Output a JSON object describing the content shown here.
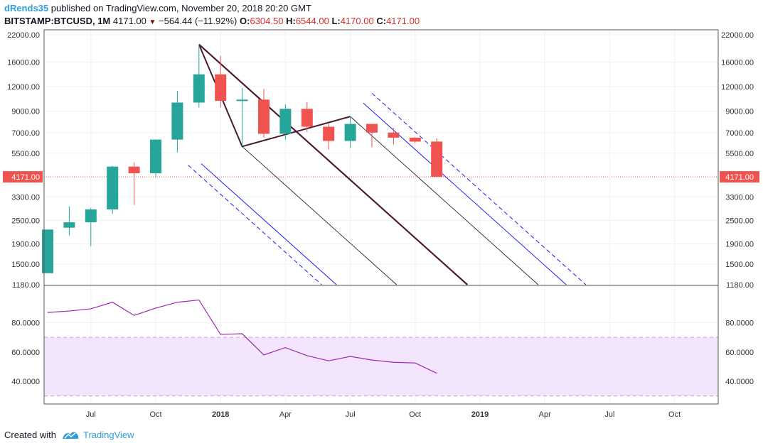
{
  "header": {
    "author": "dRends35",
    "published": " published on TradingView.com, November 20, 2018 20:20 GMT",
    "symbol": "BITSTAMP:BTCUSD, 1M",
    "last": "4171.00",
    "change": "−564.44 (−11.92%)",
    "o_label": "O:",
    "o": "6304.50",
    "h_label": "H:",
    "h": "6544.00",
    "l_label": "L:",
    "l": "4170.00",
    "c_label": "C:",
    "c": "4171.00"
  },
  "footer": {
    "created_with": "Created with",
    "brand": "TradingView"
  },
  "colors": {
    "up": "#26a69a",
    "down": "#ef5350",
    "rsi": "#9c27b0",
    "pitchfork": "#4a1a35",
    "channel": "#1a1aff"
  },
  "chart_data": [
    {
      "type": "candlestick",
      "scale": "log",
      "price_labels": [
        "22000.00",
        "16000.00",
        "12000.00",
        "9000.00",
        "7000.00",
        "5500.00",
        "4171.00",
        "3300.00",
        "2500.00",
        "1900.00",
        "1500.00",
        "1180.00"
      ],
      "ylim": [
        1180,
        22000
      ],
      "last_price_label": "4171.00",
      "x_labels": [
        "Jul",
        "Oct",
        "2018",
        "Apr",
        "Jul",
        "Oct",
        "2019",
        "Apr",
        "Jul",
        "Oct"
      ],
      "candles": [
        {
          "m": "2017-05",
          "o": 1350,
          "h": 2250,
          "l": 1350,
          "c": 2250
        },
        {
          "m": "2017-06",
          "o": 2300,
          "h": 2950,
          "l": 2100,
          "c": 2450
        },
        {
          "m": "2017-07",
          "o": 2450,
          "h": 2900,
          "l": 1850,
          "c": 2850
        },
        {
          "m": "2017-08",
          "o": 2850,
          "h": 4750,
          "l": 2700,
          "c": 4700
        },
        {
          "m": "2017-09",
          "o": 4700,
          "h": 4950,
          "l": 3000,
          "c": 4350
        },
        {
          "m": "2017-10",
          "o": 4350,
          "h": 6450,
          "l": 4150,
          "c": 6450
        },
        {
          "m": "2017-11",
          "o": 6450,
          "h": 11400,
          "l": 5550,
          "c": 9950
        },
        {
          "m": "2017-12",
          "o": 9950,
          "h": 19650,
          "l": 9400,
          "c": 13850
        },
        {
          "m": "2018-01",
          "o": 13850,
          "h": 17200,
          "l": 9400,
          "c": 10150
        },
        {
          "m": "2018-02",
          "o": 10150,
          "h": 11800,
          "l": 6000,
          "c": 10300
        },
        {
          "m": "2018-03",
          "o": 10300,
          "h": 11700,
          "l": 6600,
          "c": 6900
        },
        {
          "m": "2018-04",
          "o": 6900,
          "h": 9750,
          "l": 6450,
          "c": 9250
        },
        {
          "m": "2018-05",
          "o": 9250,
          "h": 10000,
          "l": 7050,
          "c": 7500
        },
        {
          "m": "2018-06",
          "o": 7500,
          "h": 7750,
          "l": 5750,
          "c": 6350
        },
        {
          "m": "2018-07",
          "o": 6350,
          "h": 8500,
          "l": 5850,
          "c": 7750
        },
        {
          "m": "2018-08",
          "o": 7750,
          "h": 7750,
          "l": 5900,
          "c": 7000
        },
        {
          "m": "2018-09",
          "o": 7000,
          "h": 7400,
          "l": 6100,
          "c": 6600
        },
        {
          "m": "2018-10",
          "o": 6600,
          "h": 6650,
          "l": 6200,
          "c": 6300
        },
        {
          "m": "2018-11",
          "o": 6304.5,
          "h": 6544,
          "l": 4170,
          "c": 4171
        }
      ]
    },
    {
      "type": "line",
      "indicator": "RSI",
      "y_labels": [
        "80.0000",
        "60.0000",
        "40.0000"
      ],
      "ylim": [
        24.5,
        105
      ],
      "band": [
        30,
        70
      ],
      "series": [
        {
          "values": [
            87,
            88,
            89.5,
            94,
            85,
            90,
            94,
            95.5,
            72,
            72.5,
            58,
            63,
            57.5,
            54,
            57,
            54.5,
            53,
            52.5,
            45.5
          ]
        }
      ]
    }
  ]
}
